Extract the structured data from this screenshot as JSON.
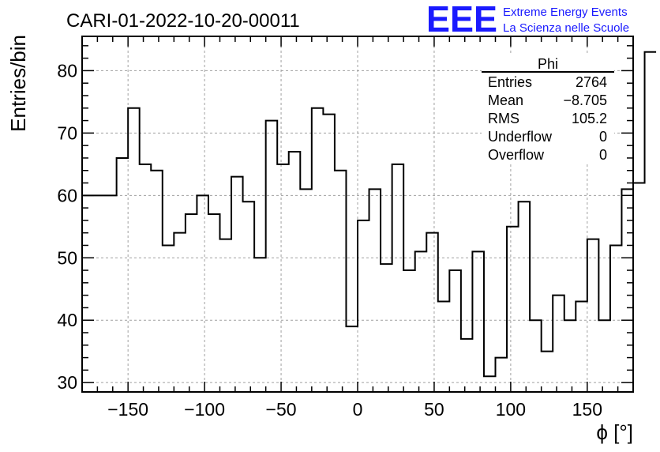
{
  "title": "CARI-01-2022-10-20-00011",
  "branding": {
    "logo": "EEE",
    "line1": "Extreme Energy Events",
    "line2": "La Scienza nelle Scuole",
    "color": "#1a1aff"
  },
  "stats_box": {
    "title": "Phi",
    "rows": [
      {
        "label": "Entries",
        "value": "2764"
      },
      {
        "label": "Mean",
        "value": "−8.705"
      },
      {
        "label": "RMS",
        "value": "105.2"
      },
      {
        "label": "Underflow",
        "value": "0"
      },
      {
        "label": "Overflow",
        "value": "0"
      }
    ]
  },
  "chart_data": {
    "type": "histogram",
    "title": "CARI-01-2022-10-20-00011",
    "xlabel": "ϕ [°]",
    "ylabel": "Entries/bin",
    "xlim": [
      -180,
      180
    ],
    "ylim": [
      28.5,
      85.5
    ],
    "x_ticks": [
      -150,
      -100,
      -50,
      0,
      50,
      100,
      150
    ],
    "x_tick_labels": [
      "−150",
      "−100",
      "−50",
      "0",
      "50",
      "100",
      "150"
    ],
    "y_ticks": [
      30,
      40,
      50,
      60,
      70,
      80
    ],
    "y_tick_labels": [
      "30",
      "40",
      "50",
      "60",
      "70",
      "80"
    ],
    "grid": true,
    "bin_edges_start": -180,
    "bin_width": 7.5,
    "values": [
      60,
      60,
      60,
      66,
      74,
      65,
      64,
      52,
      54,
      57,
      60,
      57,
      53,
      63,
      59,
      50,
      72,
      65,
      67,
      61,
      74,
      73,
      64,
      39,
      56,
      61,
      49,
      65,
      48,
      51,
      54,
      43,
      48,
      37,
      51,
      31,
      34,
      55,
      59,
      40,
      35,
      44,
      40,
      43,
      53,
      40,
      52,
      61,
      62,
      83
    ]
  }
}
